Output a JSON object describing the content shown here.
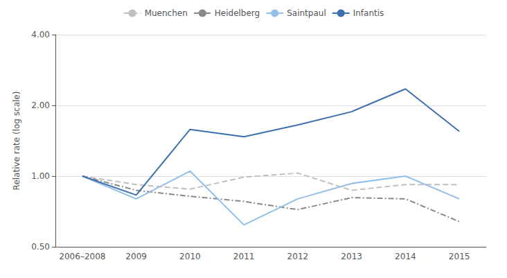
{
  "chart_data": {
    "type": "line",
    "categories": [
      "2006–2008",
      "2009",
      "2010",
      "2011",
      "2012",
      "2013",
      "2014",
      "2015"
    ],
    "series": [
      {
        "name": "Muenchen",
        "color": "#c0c0c0",
        "line_style": "dashed",
        "values": [
          1.0,
          0.92,
          0.88,
          0.99,
          1.03,
          0.87,
          0.92,
          0.92
        ]
      },
      {
        "name": "Heidelberg",
        "color": "#888888",
        "line_style": "dashdot",
        "values": [
          1.0,
          0.87,
          0.82,
          0.78,
          0.72,
          0.81,
          0.8,
          0.64
        ]
      },
      {
        "name": "Saintpaul",
        "color": "#92bfe8",
        "line_style": "solid",
        "values": [
          1.0,
          0.8,
          1.05,
          0.62,
          0.8,
          0.93,
          1.0,
          0.8
        ]
      },
      {
        "name": "Infantis",
        "color": "#3c6faf",
        "line_style": "solid",
        "values": [
          1.0,
          0.83,
          1.58,
          1.47,
          1.65,
          1.88,
          2.35,
          1.55
        ]
      }
    ],
    "y_label": "Relative rate (log scale)",
    "log": "y",
    "ylim": [
      0.5,
      4.0
    ],
    "yticks": [
      {
        "value": 0.5,
        "label": "0.50"
      },
      {
        "value": 1.0,
        "label": "1.00"
      },
      {
        "value": 2.0,
        "label": "2.00"
      },
      {
        "value": 4.0,
        "label": "4.00"
      }
    ],
    "grid": true,
    "legend": "top"
  }
}
